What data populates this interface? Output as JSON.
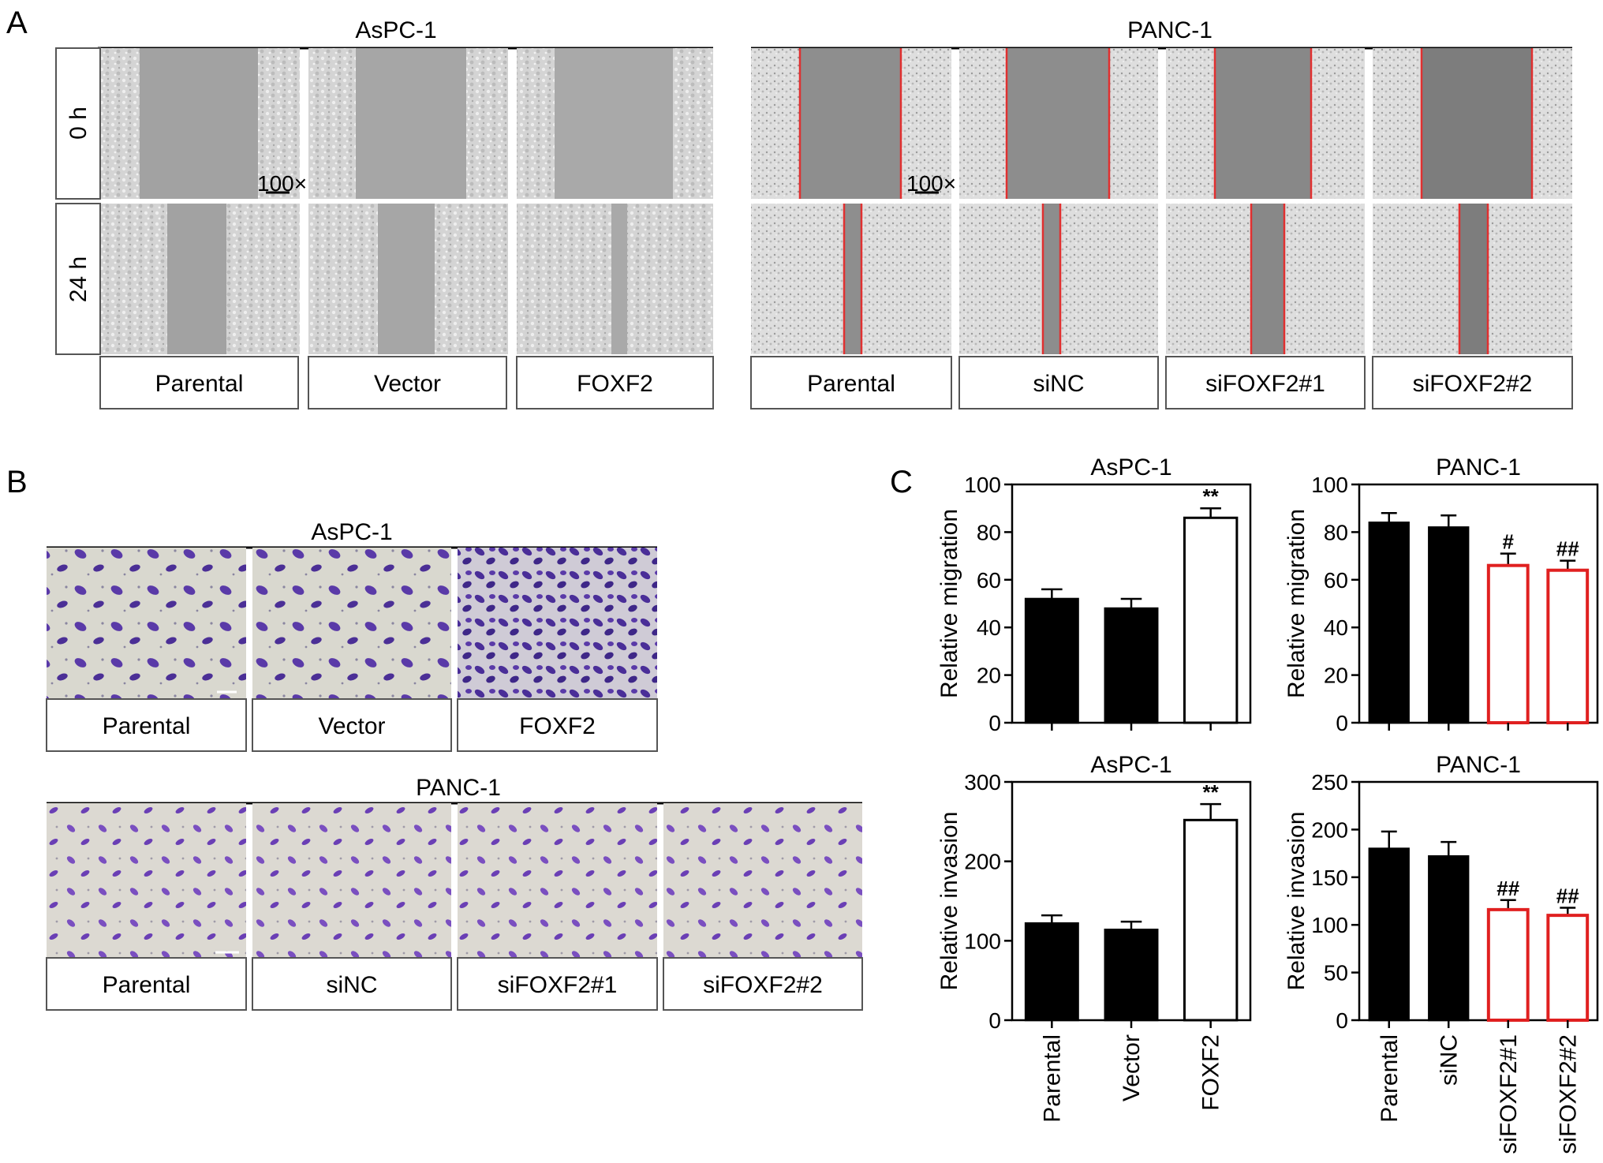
{
  "panels": {
    "A": {
      "letter": "A",
      "aspc1_title": "AsPC-1",
      "panc1_title": "PANC-1",
      "rows": [
        "0 h",
        "24 h"
      ],
      "aspc1_groups": [
        "Parental",
        "Vector",
        "FOXF2"
      ],
      "panc1_groups": [
        "Parental",
        "siNC",
        "siFOXF2#1",
        "siFOXF2#2"
      ],
      "scale_text": "100×"
    },
    "B": {
      "letter": "B",
      "aspc1_title": "AsPC-1",
      "panc1_title": "PANC-1",
      "aspc1_groups": [
        "Parental",
        "Vector",
        "FOXF2"
      ],
      "panc1_groups": [
        "Parental",
        "siNC",
        "siFOXF2#1",
        "siFOXF2#2"
      ],
      "stain_color": "#5a3aa8"
    },
    "C": {
      "letter": "C"
    }
  },
  "colors": {
    "black_bar": "#000000",
    "red_outline": "#e02020",
    "scratch_line": "#e03030"
  },
  "chart_data": [
    {
      "type": "bar",
      "title": "AsPC-1",
      "ylabel": "Relative migration",
      "categories": [
        "Parental",
        "Vector",
        "FOXF2"
      ],
      "values": [
        52,
        48,
        86
      ],
      "errors": [
        4,
        4,
        4
      ],
      "styles": [
        "black",
        "black",
        "white"
      ],
      "annotations": [
        "",
        "",
        "**"
      ],
      "ylim": [
        0,
        100
      ],
      "yticks": [
        0,
        20,
        40,
        60,
        80,
        100
      ],
      "show_xticklabels": false
    },
    {
      "type": "bar",
      "title": "PANC-1",
      "ylabel": "Relative migration",
      "categories": [
        "Parental",
        "siNC",
        "siFOXF2#1",
        "siFOXF2#2"
      ],
      "values": [
        84,
        82,
        66,
        64
      ],
      "errors": [
        4,
        5,
        5,
        4
      ],
      "styles": [
        "black",
        "black",
        "red",
        "red"
      ],
      "annotations": [
        "",
        "",
        "#",
        "##"
      ],
      "ylim": [
        0,
        100
      ],
      "yticks": [
        0,
        20,
        40,
        60,
        80,
        100
      ],
      "show_xticklabels": false
    },
    {
      "type": "bar",
      "title": "AsPC-1",
      "ylabel": "Relative invasion",
      "categories": [
        "Parental",
        "Vector",
        "FOXF2"
      ],
      "values": [
        122,
        114,
        252
      ],
      "errors": [
        10,
        10,
        20
      ],
      "styles": [
        "black",
        "black",
        "white"
      ],
      "annotations": [
        "",
        "",
        "**"
      ],
      "ylim": [
        0,
        300
      ],
      "yticks": [
        0,
        100,
        200,
        300
      ],
      "show_xticklabels": true
    },
    {
      "type": "bar",
      "title": "PANC-1",
      "ylabel": "Relative invasion",
      "categories": [
        "Parental",
        "siNC",
        "siFOXF2#1",
        "siFOXF2#2"
      ],
      "values": [
        180,
        172,
        116,
        110
      ],
      "errors": [
        18,
        15,
        10,
        8
      ],
      "styles": [
        "black",
        "black",
        "red",
        "red"
      ],
      "annotations": [
        "",
        "",
        "##",
        "##"
      ],
      "ylim": [
        0,
        250
      ],
      "yticks": [
        0,
        50,
        100,
        150,
        200,
        250
      ],
      "show_xticklabels": true
    }
  ]
}
